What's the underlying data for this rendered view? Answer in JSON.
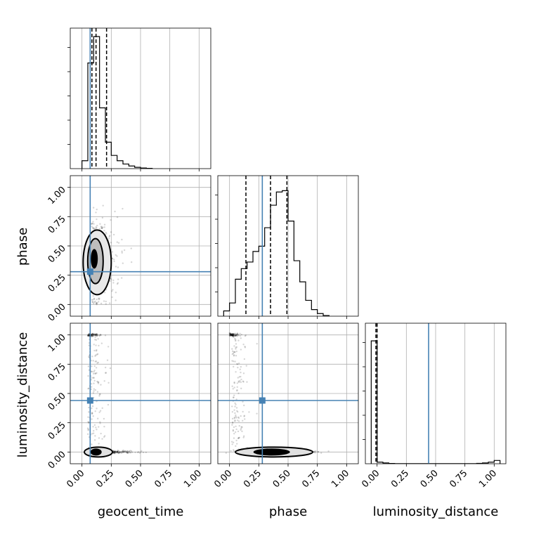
{
  "chart_data": {
    "type": "scatter",
    "parameters": [
      "geocent_time",
      "phase",
      "luminosity_distance"
    ],
    "axis_ticks": [
      "0.00",
      "0.25",
      "0.50",
      "0.75",
      "1.00"
    ],
    "axis_range": [
      -0.1,
      1.1
    ],
    "truth_color": "#4682b4",
    "truths": {
      "geocent_time": 0.07,
      "phase": 0.28,
      "luminosity_distance": 0.44
    },
    "quantiles": {
      "geocent_time": [
        0.085,
        0.12,
        0.21
      ],
      "phase": [
        0.14,
        0.35,
        0.49
      ],
      "luminosity_distance": [
        -0.01,
        0.0
      ]
    },
    "histograms": {
      "geocent_time": {
        "edges": [
          0.0,
          0.05,
          0.1,
          0.15,
          0.2,
          0.25,
          0.3,
          0.35,
          0.4,
          0.45,
          0.5,
          0.55,
          0.6
        ],
        "counts": [
          0.06,
          0.8,
          1.0,
          0.46,
          0.2,
          0.1,
          0.06,
          0.035,
          0.02,
          0.01,
          0.005,
          0.002
        ]
      },
      "phase": {
        "edges": [
          -0.05,
          0.0,
          0.05,
          0.1,
          0.15,
          0.2,
          0.25,
          0.3,
          0.35,
          0.4,
          0.45,
          0.5,
          0.55,
          0.6,
          0.65,
          0.7,
          0.75,
          0.8,
          0.85
        ],
        "counts": [
          0.04,
          0.1,
          0.28,
          0.36,
          0.41,
          0.49,
          0.53,
          0.67,
          0.84,
          0.94,
          0.95,
          0.72,
          0.42,
          0.26,
          0.12,
          0.05,
          0.02,
          0.005
        ]
      },
      "luminosity_distance": {
        "edges": [
          -0.05,
          0.0,
          0.05,
          0.1,
          0.15,
          0.2,
          0.25,
          0.3,
          0.35,
          0.4,
          0.45,
          0.5,
          0.55,
          0.6,
          0.65,
          0.7,
          0.75,
          0.8,
          0.85,
          0.9,
          0.95,
          1.0,
          1.05
        ],
        "counts": [
          0.93,
          0.012,
          0.006,
          0.002,
          0.001,
          0.001,
          0.001,
          0.001,
          0.001,
          0.001,
          0.001,
          0.001,
          0.001,
          0.001,
          0.001,
          0.001,
          0.001,
          0.001,
          0.003,
          0.006,
          0.012,
          0.025
        ]
      }
    },
    "scatter_summary": {
      "phase_vs_geocent_time": {
        "x_mean": 0.12,
        "x_sd": 0.09,
        "y_mean": 0.36,
        "y_sd": 0.16
      },
      "luminosity_distance_vs_geocent_time": {
        "main_mode_y": 0.0,
        "secondary_mode_y": 1.0
      },
      "luminosity_distance_vs_phase": {
        "main_mode_y": 0.0,
        "secondary_mode_y": 1.0
      }
    },
    "grid": true
  }
}
